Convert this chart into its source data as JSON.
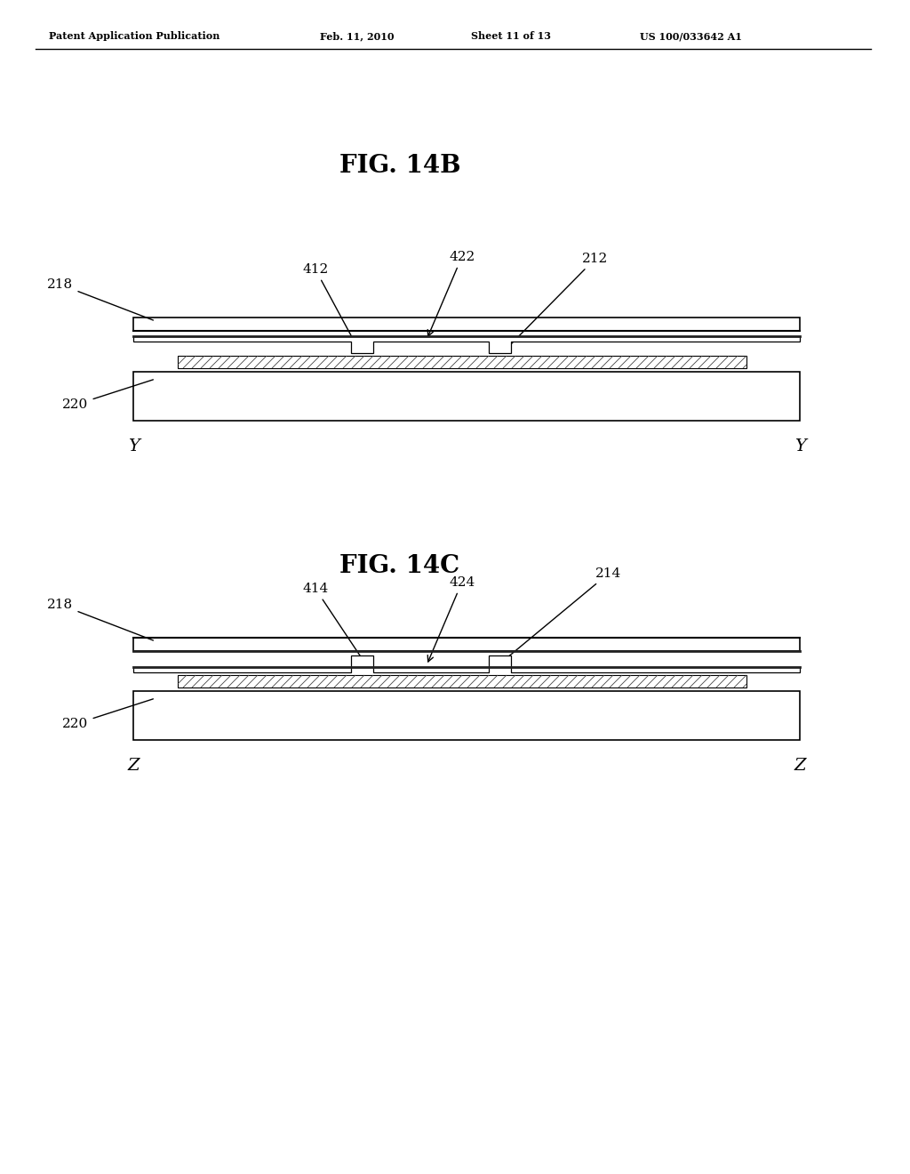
{
  "bg_color": "#ffffff",
  "fig_width": 10.24,
  "fig_height": 13.2,
  "header_text": "Patent Application Publication",
  "header_date": "Feb. 11, 2010",
  "header_sheet": "Sheet 11 of 13",
  "header_patent": "US 100/033642 A1",
  "fig14b_title": "FIG. 14B",
  "fig14c_title": "FIG. 14C",
  "label_218_b": "218",
  "label_220_b": "220",
  "label_412_b": "412",
  "label_422_b": "422",
  "label_212_b": "212",
  "label_218_c": "218",
  "label_220_c": "220",
  "label_414_c": "414",
  "label_424_c": "424",
  "label_214_c": "214",
  "y_label_left": "Y",
  "y_label_right": "Y",
  "z_label_left": "Z",
  "z_label_right": "Z"
}
